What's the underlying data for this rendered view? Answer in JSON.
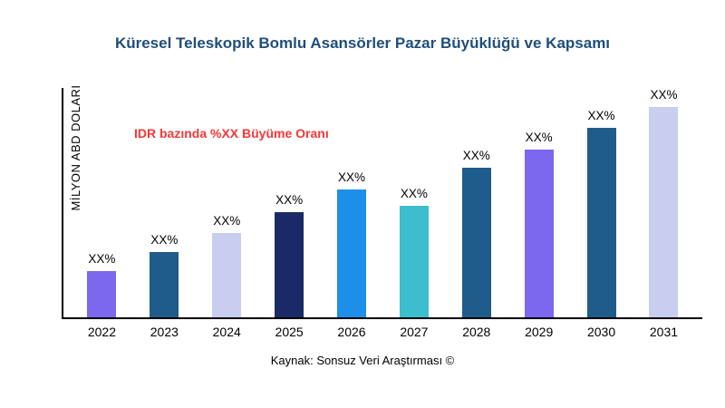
{
  "title": "Küresel Teleskopik Bomlu Asansörler Pazar Büyüklüğü ve Kapsamı",
  "caption": "Kaynak: Sonsuz Veri Araştırması ©",
  "annotation": {
    "text": "IDR bazında %XX Büyüme Oranı",
    "color": "#F93636"
  },
  "chart_data": {
    "type": "bar",
    "title": "Küresel Teleskopik Bomlu Asansörler Pazar Büyüklüğü ve Kapsamı",
    "xlabel": "",
    "ylabel": "MİLYON ABD DOLARI",
    "categories": [
      "2022",
      "2023",
      "2024",
      "2025",
      "2026",
      "2027",
      "2028",
      "2029",
      "2030",
      "2031"
    ],
    "values": [
      22,
      31,
      40,
      50,
      61,
      53,
      71,
      80,
      90,
      100
    ],
    "bar_labels": [
      "XX%",
      "XX%",
      "XX%",
      "XX%",
      "XX%",
      "XX%",
      "XX%",
      "XX%",
      "XX%",
      "XX%"
    ],
    "bar_colors": [
      "#7B68EE",
      "#1F5C8B",
      "#C9CDF0",
      "#1A2A66",
      "#1E8FE8",
      "#3CBECF",
      "#1F5C8B",
      "#7B68EE",
      "#1F5C8B",
      "#C9CDF0"
    ],
    "ylim": [
      0,
      110
    ],
    "grid": false,
    "legend": false,
    "title_color": "#1F4E79",
    "annotation_text": "IDR bazında %XX Büyüme Oranı"
  }
}
